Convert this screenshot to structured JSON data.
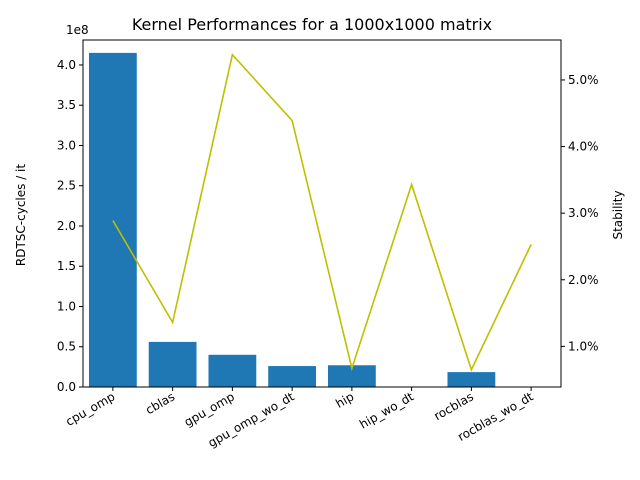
{
  "chart_data": {
    "type": "bar",
    "title": "Kernel Performances for a 1000x1000 matrix",
    "xlabel": "",
    "ylabel": "RDTSC-cycles / it",
    "y_offset_text": "1e8",
    "y_scale": 100000000,
    "ylim": [
      0,
      431000000
    ],
    "y_ticks": [
      0,
      50000000,
      100000000,
      150000000,
      200000000,
      250000000,
      300000000,
      350000000,
      400000000
    ],
    "y_tick_labels": [
      "0.0",
      "0.5",
      "1.0",
      "1.5",
      "2.0",
      "2.5",
      "3.0",
      "3.5",
      "4.0"
    ],
    "categories": [
      "cpu_omp",
      "cblas",
      "gpu_omp",
      "gpu_omp_wo_dt",
      "hip",
      "hip_wo_dt",
      "rocblas",
      "rocblas_wo_dt"
    ],
    "values": [
      415000000,
      56000000,
      40000000,
      26000000,
      27000000,
      300000,
      18500000,
      200000
    ],
    "bar_color": "#1f77b4",
    "secondary_axis": {
      "label": "Stability",
      "ylim": [
        0.39,
        5.6
      ],
      "y_ticks": [
        1.0,
        2.0,
        3.0,
        4.0,
        5.0
      ],
      "y_tick_labels": [
        "1.0%",
        "2.0%",
        "3.0%",
        "4.0%",
        "5.0%"
      ],
      "line_values": [
        2.89,
        1.36,
        5.38,
        4.39,
        0.67,
        3.43,
        0.65,
        2.53
      ],
      "line_color": "#bfbf00"
    },
    "grid": false
  }
}
